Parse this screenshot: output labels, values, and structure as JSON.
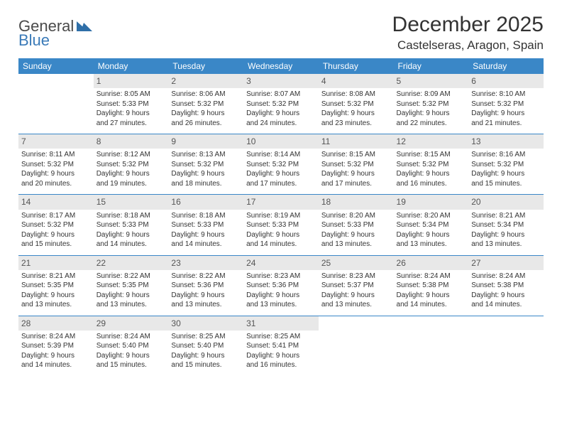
{
  "logo": {
    "text1": "General",
    "text2": "Blue"
  },
  "title": "December 2025",
  "location": "Castelseras, Aragon, Spain",
  "colors": {
    "header_bg": "#3a87c7",
    "header_text": "#ffffff",
    "daynum_bg": "#e8e8e8",
    "rule": "#3a87c7",
    "logo_blue": "#2f6fa8"
  },
  "weekdays": [
    "Sunday",
    "Monday",
    "Tuesday",
    "Wednesday",
    "Thursday",
    "Friday",
    "Saturday"
  ],
  "labels": {
    "sunrise": "Sunrise:",
    "sunset": "Sunset:",
    "daylight": "Daylight:"
  },
  "weeks": [
    [
      {
        "empty": true
      },
      {
        "n": "1",
        "sr": "8:05 AM",
        "ss": "5:33 PM",
        "dl1": "9 hours",
        "dl2": "and 27 minutes."
      },
      {
        "n": "2",
        "sr": "8:06 AM",
        "ss": "5:32 PM",
        "dl1": "9 hours",
        "dl2": "and 26 minutes."
      },
      {
        "n": "3",
        "sr": "8:07 AM",
        "ss": "5:32 PM",
        "dl1": "9 hours",
        "dl2": "and 24 minutes."
      },
      {
        "n": "4",
        "sr": "8:08 AM",
        "ss": "5:32 PM",
        "dl1": "9 hours",
        "dl2": "and 23 minutes."
      },
      {
        "n": "5",
        "sr": "8:09 AM",
        "ss": "5:32 PM",
        "dl1": "9 hours",
        "dl2": "and 22 minutes."
      },
      {
        "n": "6",
        "sr": "8:10 AM",
        "ss": "5:32 PM",
        "dl1": "9 hours",
        "dl2": "and 21 minutes."
      }
    ],
    [
      {
        "n": "7",
        "sr": "8:11 AM",
        "ss": "5:32 PM",
        "dl1": "9 hours",
        "dl2": "and 20 minutes."
      },
      {
        "n": "8",
        "sr": "8:12 AM",
        "ss": "5:32 PM",
        "dl1": "9 hours",
        "dl2": "and 19 minutes."
      },
      {
        "n": "9",
        "sr": "8:13 AM",
        "ss": "5:32 PM",
        "dl1": "9 hours",
        "dl2": "and 18 minutes."
      },
      {
        "n": "10",
        "sr": "8:14 AM",
        "ss": "5:32 PM",
        "dl1": "9 hours",
        "dl2": "and 17 minutes."
      },
      {
        "n": "11",
        "sr": "8:15 AM",
        "ss": "5:32 PM",
        "dl1": "9 hours",
        "dl2": "and 17 minutes."
      },
      {
        "n": "12",
        "sr": "8:15 AM",
        "ss": "5:32 PM",
        "dl1": "9 hours",
        "dl2": "and 16 minutes."
      },
      {
        "n": "13",
        "sr": "8:16 AM",
        "ss": "5:32 PM",
        "dl1": "9 hours",
        "dl2": "and 15 minutes."
      }
    ],
    [
      {
        "n": "14",
        "sr": "8:17 AM",
        "ss": "5:32 PM",
        "dl1": "9 hours",
        "dl2": "and 15 minutes."
      },
      {
        "n": "15",
        "sr": "8:18 AM",
        "ss": "5:33 PM",
        "dl1": "9 hours",
        "dl2": "and 14 minutes."
      },
      {
        "n": "16",
        "sr": "8:18 AM",
        "ss": "5:33 PM",
        "dl1": "9 hours",
        "dl2": "and 14 minutes."
      },
      {
        "n": "17",
        "sr": "8:19 AM",
        "ss": "5:33 PM",
        "dl1": "9 hours",
        "dl2": "and 14 minutes."
      },
      {
        "n": "18",
        "sr": "8:20 AM",
        "ss": "5:33 PM",
        "dl1": "9 hours",
        "dl2": "and 13 minutes."
      },
      {
        "n": "19",
        "sr": "8:20 AM",
        "ss": "5:34 PM",
        "dl1": "9 hours",
        "dl2": "and 13 minutes."
      },
      {
        "n": "20",
        "sr": "8:21 AM",
        "ss": "5:34 PM",
        "dl1": "9 hours",
        "dl2": "and 13 minutes."
      }
    ],
    [
      {
        "n": "21",
        "sr": "8:21 AM",
        "ss": "5:35 PM",
        "dl1": "9 hours",
        "dl2": "and 13 minutes."
      },
      {
        "n": "22",
        "sr": "8:22 AM",
        "ss": "5:35 PM",
        "dl1": "9 hours",
        "dl2": "and 13 minutes."
      },
      {
        "n": "23",
        "sr": "8:22 AM",
        "ss": "5:36 PM",
        "dl1": "9 hours",
        "dl2": "and 13 minutes."
      },
      {
        "n": "24",
        "sr": "8:23 AM",
        "ss": "5:36 PM",
        "dl1": "9 hours",
        "dl2": "and 13 minutes."
      },
      {
        "n": "25",
        "sr": "8:23 AM",
        "ss": "5:37 PM",
        "dl1": "9 hours",
        "dl2": "and 13 minutes."
      },
      {
        "n": "26",
        "sr": "8:24 AM",
        "ss": "5:38 PM",
        "dl1": "9 hours",
        "dl2": "and 14 minutes."
      },
      {
        "n": "27",
        "sr": "8:24 AM",
        "ss": "5:38 PM",
        "dl1": "9 hours",
        "dl2": "and 14 minutes."
      }
    ],
    [
      {
        "n": "28",
        "sr": "8:24 AM",
        "ss": "5:39 PM",
        "dl1": "9 hours",
        "dl2": "and 14 minutes."
      },
      {
        "n": "29",
        "sr": "8:24 AM",
        "ss": "5:40 PM",
        "dl1": "9 hours",
        "dl2": "and 15 minutes."
      },
      {
        "n": "30",
        "sr": "8:25 AM",
        "ss": "5:40 PM",
        "dl1": "9 hours",
        "dl2": "and 15 minutes."
      },
      {
        "n": "31",
        "sr": "8:25 AM",
        "ss": "5:41 PM",
        "dl1": "9 hours",
        "dl2": "and 16 minutes."
      },
      {
        "empty": true
      },
      {
        "empty": true
      },
      {
        "empty": true
      }
    ]
  ]
}
